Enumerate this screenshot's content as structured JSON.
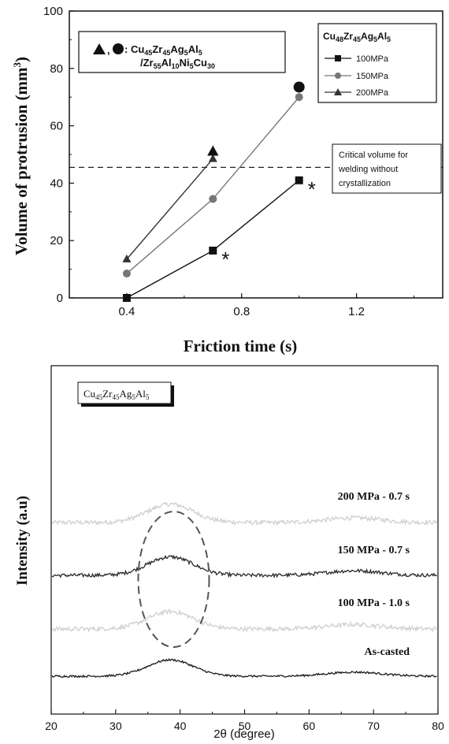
{
  "chart_data": [
    {
      "type": "line",
      "xlabel": "Friction time (s)",
      "ylabel_main": "Volume of protrusion (mm",
      "ylabel_sup": "3",
      "ylabel_end": ")",
      "xlim": [
        0.2,
        1.5
      ],
      "ylim": [
        0,
        100
      ],
      "xticks": [
        0.4,
        0.8,
        1.2
      ],
      "xtick_labels": [
        "0.4",
        "0.8",
        "1.2"
      ],
      "yticks": [
        0,
        20,
        40,
        60,
        80,
        100
      ],
      "ytick_labels": [
        "0",
        "20",
        "40",
        "60",
        "80",
        "100"
      ],
      "legend": {
        "title_parts": [
          "Cu",
          "48",
          "Zr",
          "45",
          "Ag",
          "5",
          "Al",
          "5"
        ],
        "entries": [
          "100MPa",
          "150MPa",
          "200MPa"
        ]
      },
      "series": [
        {
          "name": "100MPa",
          "marker": "square",
          "color": "#111111",
          "x": [
            0.4,
            0.7,
            1.0
          ],
          "y": [
            0,
            16.5,
            41
          ]
        },
        {
          "name": "150MPa",
          "marker": "circle",
          "color": "#777777",
          "x": [
            0.4,
            0.7,
            1.0
          ],
          "y": [
            8.5,
            34.5,
            70
          ]
        },
        {
          "name": "200MPa",
          "marker": "triangle",
          "color": "#333333",
          "x": [
            0.4,
            0.7
          ],
          "y": [
            13.5,
            48.5
          ]
        }
      ],
      "combo_points": [
        {
          "marker": "triangle",
          "x": 0.7,
          "y": 51
        },
        {
          "marker": "circle",
          "x": 1.0,
          "y": 73.5
        }
      ],
      "combo_label": {
        "prefix": ": ",
        "line1_parts": [
          "Cu",
          "45",
          "Zr",
          "45",
          "Ag",
          "5",
          "Al",
          "5"
        ],
        "line2_parts": [
          "/Zr",
          "55",
          "Al",
          "10",
          "Ni",
          "5",
          "Cu",
          "30"
        ]
      },
      "reference_line": {
        "y": 45.5,
        "label_lines": [
          "Critical volume for",
          "welding without",
          "crystallization"
        ]
      },
      "asterisks": [
        {
          "text": "*",
          "x": 0.7,
          "y": 16.5
        },
        {
          "text": "*",
          "x": 1.0,
          "y": 41
        }
      ]
    },
    {
      "type": "line",
      "xlabel": "2θ (degree)",
      "ylabel": "Intensity (a.u)",
      "xlim": [
        20,
        80
      ],
      "xticks": [
        20,
        30,
        40,
        50,
        60,
        70,
        80
      ],
      "xtick_labels": [
        "20",
        "30",
        "40",
        "50",
        "60",
        "70",
        "80"
      ],
      "sample_label_parts": [
        "Cu",
        "45",
        "Zr",
        "45",
        "Ag",
        "5",
        "Al",
        "5"
      ],
      "series": [
        {
          "name": "200 MPa - 0.7 s",
          "color": "#cfcfcf",
          "offset": 3,
          "peak_height": 0.9,
          "noise": 0.55
        },
        {
          "name": "150 MPa - 0.7 s",
          "color": "#2a2a2a",
          "offset": 2,
          "peak_height": 0.9,
          "noise": 0.45
        },
        {
          "name": "100 MPa - 1.0 s",
          "color": "#cfcfcf",
          "offset": 1,
          "peak_height": 0.85,
          "noise": 0.55
        },
        {
          "name": "As-casted",
          "color": "#1a1a1a",
          "offset": 0,
          "peak_height": 0.8,
          "noise": 0.25
        }
      ],
      "highlight_ellipse": {
        "cx": 39,
        "color": "#555555"
      }
    }
  ]
}
